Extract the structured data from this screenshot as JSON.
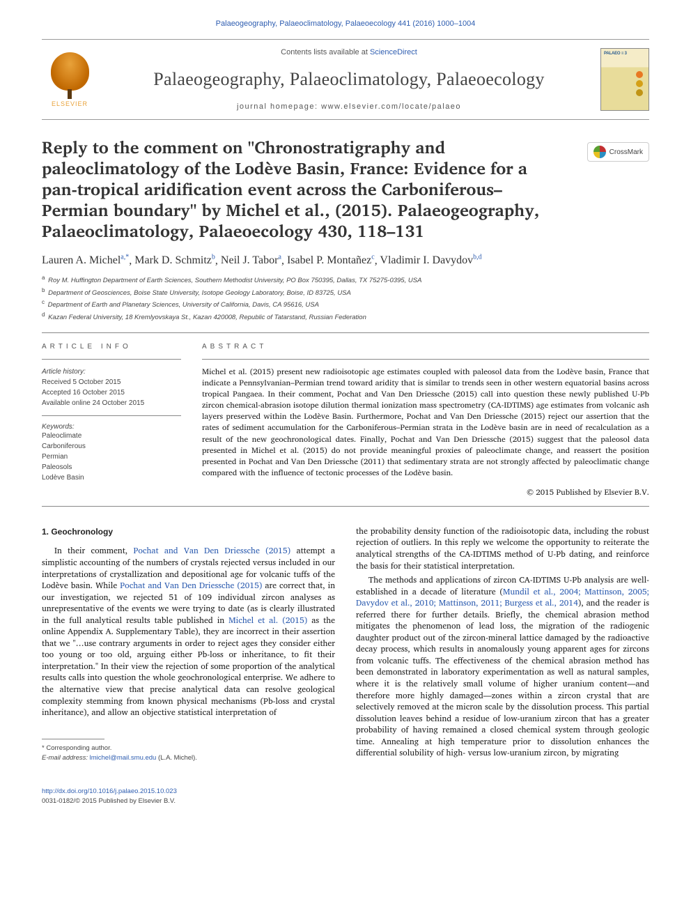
{
  "top_link": "Palaeogeography, Palaeoclimatology, Palaeoecology 441 (2016) 1000–1004",
  "header": {
    "contents_prefix": "Contents lists available at ",
    "contents_link": "ScienceDirect",
    "journal_name": "Palaeogeography, Palaeoclimatology, Palaeoecology",
    "homepage": "journal homepage: www.elsevier.com/locate/palaeo",
    "elsevier_label": "ELSEVIER",
    "cover_title": "PALAEO ≡ 3"
  },
  "crossmark_label": "CrossMark",
  "title": "Reply to the comment on \"Chronostratigraphy and paleoclimatology of the Lodève Basin, France: Evidence for a pan-tropical aridification event across the Carboniferous–Permian boundary\" by Michel et al., (2015). Palaeogeography, Palaeoclimatology, Palaeoecology 430, 118–131",
  "authors_html_parts": [
    {
      "name": "Lauren A. Michel",
      "sup": "a,*"
    },
    {
      "name": "Mark D. Schmitz",
      "sup": "b"
    },
    {
      "name": "Neil J. Tabor",
      "sup": "a"
    },
    {
      "name": "Isabel P. Montañez",
      "sup": "c"
    },
    {
      "name": "Vladimir I. Davydov",
      "sup": "b,d"
    }
  ],
  "affiliations": [
    {
      "sup": "a",
      "text": "Roy M. Huffington Department of Earth Sciences, Southern Methodist University, PO Box 750395, Dallas, TX 75275-0395, USA"
    },
    {
      "sup": "b",
      "text": "Department of Geosciences, Boise State University, Isotope Geology Laboratory, Boise, ID 83725, USA"
    },
    {
      "sup": "c",
      "text": "Department of Earth and Planetary Sciences, University of California, Davis, CA 95616, USA"
    },
    {
      "sup": "d",
      "text": "Kazan Federal University, 18 Kremlyovskaya St., Kazan 420008, Republic of Tatarstand, Russian Federation"
    }
  ],
  "info": {
    "heading": "ARTICLE INFO",
    "history_label": "Article history:",
    "received": "Received 5 October 2015",
    "accepted": "Accepted 16 October 2015",
    "online": "Available online 24 October 2015",
    "keywords_label": "Keywords:",
    "keywords": [
      "Paleoclimate",
      "Carboniferous",
      "Permian",
      "Paleosols",
      "Lodève Basin"
    ]
  },
  "abstract": {
    "heading": "ABSTRACT",
    "text": "Michel et al. (2015) present new radioisotopic age estimates coupled with paleosol data from the Lodève basin, France that indicate a Pennsylvanian–Permian trend toward aridity that is similar to trends seen in other western equatorial basins across tropical Pangaea. In their comment, Pochat and Van Den Driessche (2015) call into question these newly published U-Pb zircon chemical-abrasion isotope dilution thermal ionization mass spectrometry (CA-IDTIMS) age estimates from volcanic ash layers preserved within the Lodève Basin. Furthermore, Pochat and Van Den Driessche (2015) reject our assertion that the rates of sediment accumulation for the Carboniferous–Permian strata in the Lodève basin are in need of recalculation as a result of the new geochronological dates. Finally, Pochat and Van Den Driessche (2015) suggest that the paleosol data presented in Michel et al. (2015) do not provide meaningful proxies of paleoclimate change, and reassert the position presented in Pochat and Van Den Driessche (2011) that sedimentary strata are not strongly affected by paleoclimatic change compared with the influence of tectonic processes of the Lodève basin.",
    "copyright": "© 2015 Published by Elsevier B.V."
  },
  "body": {
    "section_heading": "1. Geochronology",
    "col1_para1_pre": "In their comment, ",
    "col1_para1_ref1": "Pochat and Van Den Driessche (2015)",
    "col1_para1_mid1": " attempt a simplistic accounting of the numbers of crystals rejected versus included in our interpretations of crystallization and depositional age for volcanic tuffs of the Lodève basin. While ",
    "col1_para1_ref2": "Pochat and Van Den Driessche (2015)",
    "col1_para1_mid2": " are correct that, in our investigation, we rejected 51 of 109 individual zircon analyses as unrepresentative of the events we were trying to date (as is clearly illustrated in the full analytical results table published in ",
    "col1_para1_ref3": "Michel et al. (2015)",
    "col1_para1_post": " as the online Appendix A. Supplementary Table), they are incorrect in their assertion that we \"…use contrary arguments in order to reject ages they consider either too young or too old, arguing either Pb-loss or inheritance, to fit their interpretation.\" In their view the rejection of some proportion of the analytical results calls into question the whole geochronological enterprise. We adhere to the alternative view that precise analytical data can resolve geological complexity stemming from known physical mechanisms (Pb-loss and crystal inheritance), and allow an objective statistical interpretation of",
    "col2_para1": "the probability density function of the radioisotopic data, including the robust rejection of outliers. In this reply we welcome the opportunity to reiterate the analytical strengths of the CA-IDTIMS method of U-Pb dating, and reinforce the basis for their statistical interpretation.",
    "col2_para2_pre": "The methods and applications of zircon CA-IDTIMS U-Pb analysis are well-established in a decade of literature (",
    "col2_para2_ref": "Mundil et al., 2004; Mattinson, 2005; Davydov et al., 2010; Mattinson, 2011; Burgess et al., 2014",
    "col2_para2_post": "), and the reader is referred there for further details. Briefly, the chemical abrasion method mitigates the phenomenon of lead loss, the migration of the radiogenic daughter product out of the zircon-mineral lattice damaged by the radioactive decay process, which results in anomalously young apparent ages for zircons from volcanic tuffs. The effectiveness of the chemical abrasion method has been demonstrated in laboratory experimentation as well as natural samples, where it is the relatively small volume of higher uranium content—and therefore more highly damaged—zones within a zircon crystal that are selectively removed at the micron scale by the dissolution process. This partial dissolution leaves behind a residue of low-uranium zircon that has a greater probability of having remained a closed chemical system through geologic time. Annealing at high temperature prior to dissolution enhances the differential solubility of high- versus low-uranium zircon, by migrating"
  },
  "footnote": {
    "corresponding": "* Corresponding author.",
    "email_label": "E-mail address:",
    "email": "lmichel@mail.smu.edu",
    "email_name": "(L.A. Michel)."
  },
  "footer": {
    "doi": "http://dx.doi.org/10.1016/j.palaeo.2015.10.023",
    "issn_copyright": "0031-0182/© 2015 Published by Elsevier B.V."
  },
  "colors": {
    "link": "#2e5db0",
    "text": "#222222",
    "muted": "#555555",
    "border": "#888888"
  }
}
